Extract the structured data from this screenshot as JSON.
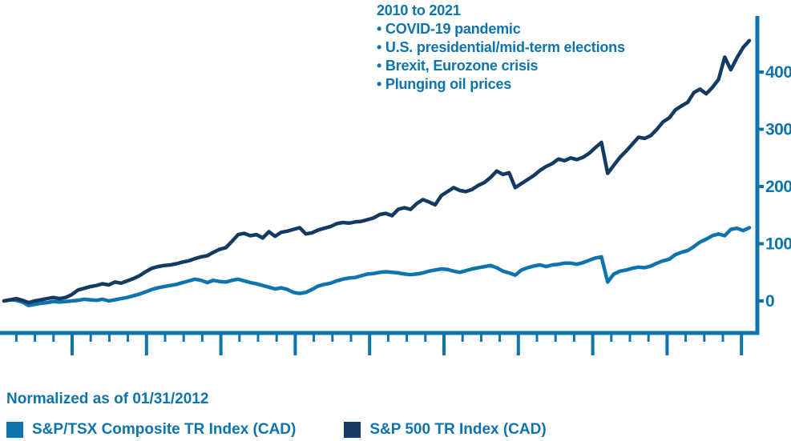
{
  "annotation": {
    "title": "2010 to 2021",
    "bullets": [
      "• COVID-19 pandemic",
      "• U.S. presidential/mid-term elections",
      "• Brexit, Eurozone crisis",
      "• Plunging oil prices"
    ]
  },
  "footer": {
    "note": "Normalized as of 01/31/2012"
  },
  "legend": {
    "items": [
      {
        "label": "S&P/TSX Composite TR Index (CAD)",
        "color": "#0d74ae"
      },
      {
        "label": "S&P 500 TR Index (CAD)",
        "color": "#123a63"
      }
    ]
  },
  "colors": {
    "accent_blue": "#0d74ae",
    "navy": "#123a63"
  },
  "chart_data": {
    "type": "line",
    "title": "2010 to 2021",
    "xlabel": "",
    "ylabel": "",
    "grid": false,
    "legend_position": "bottom",
    "yticks": [
      0,
      100,
      200,
      300,
      400
    ],
    "ylim": [
      -56,
      500
    ],
    "x_tick_labels_visible": false,
    "x_major_ticks": 10,
    "x_minor_ticks_per_major": 4,
    "normalized_note": "Normalized as of 01/31/2012",
    "series": [
      {
        "name": "S&P/TSX Composite TR Index (CAD)",
        "color": "#0d74ae",
        "values": [
          0,
          2,
          1,
          -2,
          -8,
          -6,
          -4,
          -3,
          -1,
          -2,
          -1,
          0,
          1,
          3,
          2,
          1,
          3,
          0,
          2,
          4,
          6,
          9,
          12,
          16,
          20,
          23,
          25,
          27,
          29,
          32,
          35,
          38,
          36,
          32,
          36,
          34,
          33,
          36,
          38,
          35,
          32,
          30,
          27,
          24,
          21,
          23,
          20,
          15,
          13,
          15,
          20,
          26,
          29,
          31,
          35,
          38,
          40,
          41,
          44,
          47,
          48,
          50,
          51,
          50,
          49,
          47,
          46,
          47,
          49,
          52,
          54,
          56,
          55,
          52,
          50,
          53,
          56,
          58,
          60,
          62,
          58,
          52,
          49,
          45,
          54,
          58,
          61,
          63,
          60,
          63,
          64,
          66,
          66,
          64,
          67,
          71,
          75,
          77,
          33,
          47,
          52,
          54,
          57,
          59,
          58,
          61,
          66,
          70,
          73,
          81,
          85,
          88,
          95,
          103,
          108,
          114,
          117,
          114,
          125,
          127,
          123,
          128
        ]
      },
      {
        "name": "S&P 500 TR Index (CAD)",
        "color": "#123a63",
        "values": [
          0,
          2,
          4,
          1,
          -3,
          0,
          2,
          4,
          6,
          4,
          6,
          11,
          19,
          22,
          25,
          27,
          30,
          28,
          33,
          31,
          35,
          39,
          44,
          51,
          57,
          60,
          62,
          63,
          65,
          68,
          70,
          74,
          77,
          79,
          85,
          90,
          93,
          104,
          116,
          118,
          114,
          116,
          110,
          121,
          113,
          120,
          122,
          125,
          128,
          117,
          119,
          124,
          127,
          130,
          135,
          137,
          136,
          138,
          139,
          142,
          145,
          151,
          153,
          149,
          160,
          163,
          160,
          170,
          177,
          173,
          168,
          184,
          191,
          198,
          193,
          191,
          195,
          202,
          207,
          216,
          227,
          221,
          224,
          198,
          205,
          212,
          219,
          228,
          235,
          240,
          248,
          245,
          250,
          247,
          251,
          258,
          268,
          277,
          223,
          237,
          251,
          262,
          274,
          286,
          284,
          289,
          300,
          313,
          320,
          334,
          341,
          347,
          364,
          370,
          362,
          373,
          387,
          426,
          404,
          425,
          443,
          455
        ]
      }
    ]
  }
}
